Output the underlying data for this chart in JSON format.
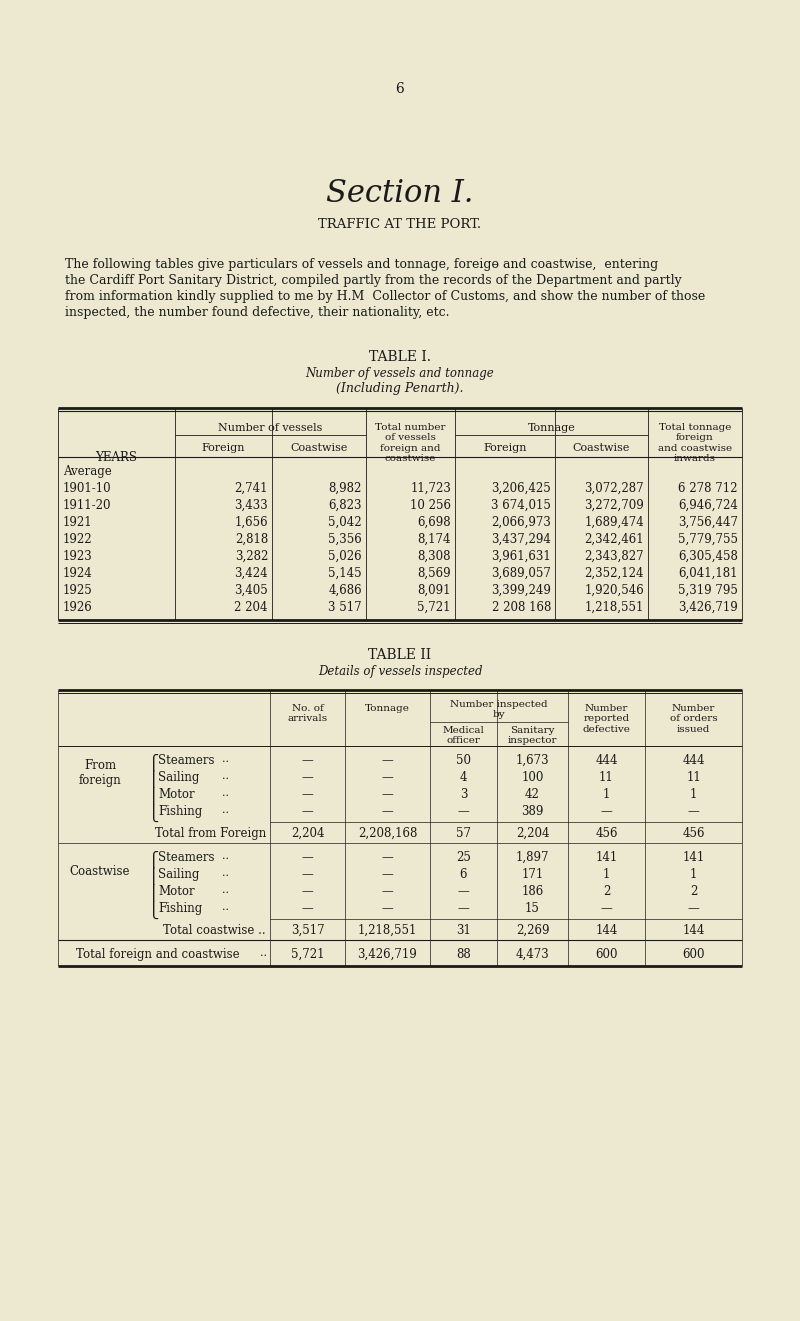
{
  "bg_color": "#ede8d0",
  "page_number": "6",
  "section_title": "Section I.",
  "subtitle": "TRAFFIC AT THE PORT.",
  "intro_lines": [
    "The following tables give particulars of vessels and tonnage, foreigɵ and coastwise,  entering",
    "the Cardiff Port Sanitary District, compiled partly from the records of the Department and partly",
    "from information kindly supplied to me by H.M  Collector of Customs, and show the number of those",
    "inspected, the number found defective, their nationality, etc."
  ],
  "table1_title": "TABLE I.",
  "table1_sub1": "Number of vessels and tonnage",
  "table1_sub2": "(Including Penarth).",
  "table1_rows": [
    {
      "year": "Average",
      "fv": "",
      "cv": "",
      "tv": "",
      "ft": "",
      "ct": "",
      "tt": ""
    },
    {
      "year": "1901-10",
      "fv": "2,741",
      "cv": "8,982",
      "tv": "11,723",
      "ft": "3,206,425",
      "ct": "3,072,287",
      "tt": "6 278 712"
    },
    {
      "year": "1911-20",
      "fv": "3,433",
      "cv": "6,823",
      "tv": "10 256",
      "ft": "3 674,015",
      "ct": "3,272,709",
      "tt": "6,946,724"
    },
    {
      "year": "1921",
      "fv": "1,656",
      "cv": "5,042",
      "tv": "6,698",
      "ft": "2,066,973",
      "ct": "1,689,474",
      "tt": "3,756,447"
    },
    {
      "year": "1922",
      "fv": "2,818",
      "cv": "5,356",
      "tv": "8,174",
      "ft": "3,437,294",
      "ct": "2,342,461",
      "tt": "5,779,755"
    },
    {
      "year": "1923",
      "fv": "3,282",
      "cv": "5,026",
      "tv": "8,308",
      "ft": "3,961,631",
      "ct": "2,343,827",
      "tt": "6,305,458"
    },
    {
      "year": "1924",
      "fv": "3,424",
      "cv": "5,145",
      "tv": "8,569",
      "ft": "3,689,057",
      "ct": "2,352,124",
      "tt": "6,041,181"
    },
    {
      "year": "1925",
      "fv": "3,405",
      "cv": "4,686",
      "tv": "8,091",
      "ft": "3,399,249",
      "ct": "1,920,546",
      "tt": "5,319 795"
    },
    {
      "year": "1926",
      "fv": "2 204",
      "cv": "3 517",
      "tv": "5,721",
      "ft": "2 208 168",
      "ct": "1,218,551",
      "tt": "3,426,719"
    }
  ],
  "table2_title": "TABLE II",
  "table2_sub": "Details of vessels inspected",
  "t2_sec1_label1": "From",
  "t2_sec1_label2": "foreign",
  "t2_sec2_label": "Coastwise",
  "t2_rows_sec1": [
    {
      "vessel": "Steamers",
      "med": "50",
      "san": "1,673",
      "rep": "444",
      "ord": "444"
    },
    {
      "vessel": "Sailing",
      "med": "4",
      "san": "100",
      "rep": "11",
      "ord": "11"
    },
    {
      "vessel": "Motor",
      "med": "3",
      "san": "42",
      "rep": "1",
      "ord": "1"
    },
    {
      "vessel": "Fishing",
      "med": "—",
      "san": "389",
      "rep": "—",
      "ord": "—"
    }
  ],
  "t2_total1": {
    "arrivals": "2,204",
    "tonnage": "2,208,168",
    "med": "57",
    "san": "2,204",
    "rep": "456",
    "ord": "456"
  },
  "t2_rows_sec2": [
    {
      "vessel": "Steamers",
      "med": "25",
      "san": "1,897",
      "rep": "141",
      "ord": "141"
    },
    {
      "vessel": "Sailing",
      "med": "6",
      "san": "171",
      "rep": "1",
      "ord": "1"
    },
    {
      "vessel": "Motor",
      "med": "—",
      "san": "186",
      "rep": "2",
      "ord": "2"
    },
    {
      "vessel": "Fishing",
      "med": "—",
      "san": "15",
      "rep": "—",
      "ord": "—"
    }
  ],
  "t2_total2": {
    "arrivals": "3,517",
    "tonnage": "1,218,551",
    "med": "31",
    "san": "2,269",
    "rep": "144",
    "ord": "144"
  },
  "t2_grand": {
    "arrivals": "5,721",
    "tonnage": "3,426,719",
    "med": "88",
    "san": "4,473",
    "rep": "600",
    "ord": "600"
  },
  "dash": "—"
}
